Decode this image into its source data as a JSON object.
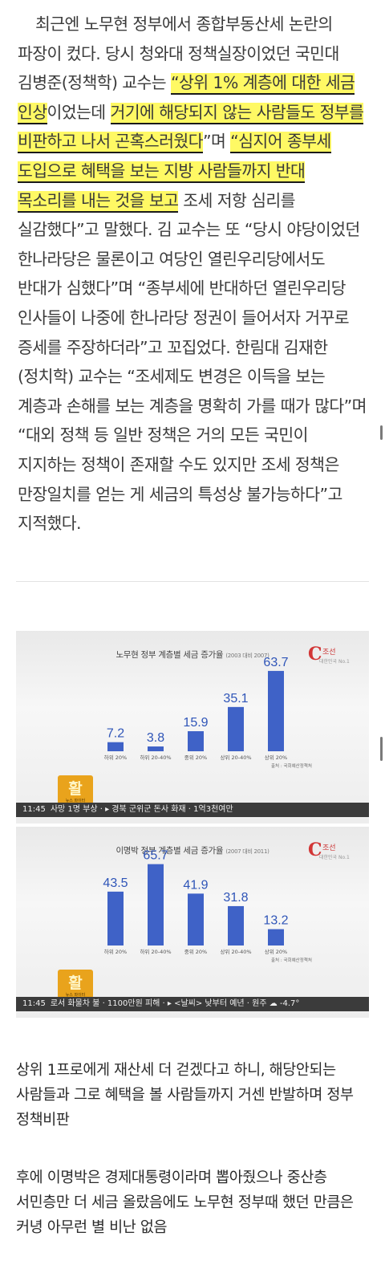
{
  "article": {
    "seg1": "최근엔 노무현 정부에서 종합부동산세 논란의 파장이 컸다. 당시 청와대 정책실장이었던 국민대 김병준(정책학) 교수는 ",
    "seg2": "“상위 1% 계층에 대한 세금 인상",
    "seg3": "이었는데 ",
    "seg4": "거기에 해당되지 않는 사람들도 정부를 비판하고 나서 곤혹스러웠다",
    "seg5": "”며 ",
    "seg6": "“심지어 종부세 도입으로 혜택을 보는 지방 사람들까지 반대 목소리를 내는 것을 보고",
    "seg7": " 조세 저항 심리를 실감했다”고 말했다. 김 교수는 또 “당시 야당이었던 한나라당은 물론이고 여당인 열린우리당에서도 반대가 심했다”며 “종부세에 반대하던 열린우리당 인사들이 나중에 한나라당 정권이 들어서자 거꾸로 증세를 주장하더라”고 꼬집었다. 한림대 김재한(정치학) 교수는 “조세제도 변경은 이득을 보는 계층과 손해를 보는 계층을 명확히 가를 때가 많다”며 “대외 정책 등 일반 정책은 거의 모든 국민이 지지하는 정책이 존재할 수도 있지만 조세 정책은 만장일치를 얻는 게 세금의 특성상 불가능하다”고 지적했다."
  },
  "broadcast": {
    "logo_text": "조선",
    "logo_sub": "대한민국 No.1",
    "badge_glyph": "활",
    "badge_sub": "뉴스 파이터",
    "source": "출처 : 국회예산정책처"
  },
  "chart_data": [
    {
      "type": "bar",
      "title": "노무현 정부 계층별 세금 증가율",
      "subtitle": "(2003 대비 2007)",
      "categories": [
        "하위 20%",
        "하위 20-40%",
        "중위 20%",
        "상위 20-40%",
        "상위 20%"
      ],
      "values": [
        7.2,
        3.8,
        15.9,
        35.1,
        63.7
      ],
      "value_labels": [
        "7.2",
        "3.8",
        "15.9",
        "35.1",
        "63.7"
      ],
      "bar_color": "#3f62c7",
      "ylim": [
        0,
        70
      ]
    },
    {
      "type": "bar",
      "title": "이명박 정부 계층별 세금 증가율",
      "subtitle": "(2007 대비 2011)",
      "categories": [
        "하위 20%",
        "하위 20-40%",
        "중위 20%",
        "상위 20-40%",
        "상위 20%"
      ],
      "values": [
        43.5,
        65.7,
        41.9,
        31.8,
        13.2
      ],
      "value_labels": [
        "43.5",
        "65.7",
        "41.9",
        "31.8",
        "13.2"
      ],
      "bar_color": "#3f62c7",
      "ylim": [
        0,
        70
      ]
    }
  ],
  "tickers": [
    {
      "time": "11:45",
      "text": "사망 1명 부상 · ▸ 경북 군위군 돈사 화재 · 1억3천여만"
    },
    {
      "time": "11:45",
      "text": "로서 화물차 불 · 1100만원 피해 · ▸ <날씨> 낮부터 예년 · 원주 ☁ -4.7°"
    }
  ],
  "comments": {
    "para1": "상위 1프로에게 재산세 더 걷겠다고 하니, 해당안되는 사람들과 그로 혜택을 볼 사람들까지 거센 반발하며 정부 정책비판",
    "para2": "후에 이명박은 경제대통령이라며 뽑아줬으나 중산층 서민층만 더 세금 올랐음에도 노무현 정부때 했던 만큼은 커녕 아무런 별 비난 없음"
  }
}
